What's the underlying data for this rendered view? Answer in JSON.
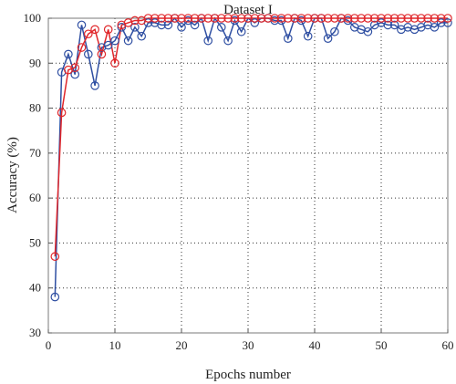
{
  "chart_data": {
    "type": "line",
    "title": "Dataset I",
    "xlabel": "Epochs number",
    "ylabel": "Accuracy (%)",
    "xlim": [
      0,
      60
    ],
    "ylim": [
      30,
      100
    ],
    "xticks": [
      0,
      10,
      20,
      30,
      40,
      50,
      60
    ],
    "yticks": [
      30,
      40,
      50,
      60,
      70,
      80,
      90,
      100
    ],
    "grid": true,
    "marker": "circle",
    "x": [
      1,
      2,
      3,
      4,
      5,
      6,
      7,
      8,
      9,
      10,
      11,
      12,
      13,
      14,
      15,
      16,
      17,
      18,
      19,
      20,
      21,
      22,
      23,
      24,
      25,
      26,
      27,
      28,
      29,
      30,
      31,
      32,
      33,
      34,
      35,
      36,
      37,
      38,
      39,
      40,
      41,
      42,
      43,
      44,
      45,
      46,
      47,
      48,
      49,
      50,
      51,
      52,
      53,
      54,
      55,
      56,
      57,
      58,
      59,
      60
    ],
    "series": [
      {
        "color": "#2f4fa2",
        "values": [
          38,
          88,
          92,
          87.5,
          98.5,
          92,
          85,
          93.5,
          94,
          95,
          98,
          95,
          98,
          96,
          99,
          99,
          98.5,
          98.5,
          100,
          98,
          99.5,
          98.5,
          100,
          95,
          100,
          98,
          95,
          99.5,
          97,
          100,
          99,
          100,
          100,
          99.5,
          99.5,
          95.5,
          100,
          99.5,
          96,
          100,
          100,
          95.5,
          97,
          100,
          99.5,
          98,
          97.5,
          97,
          98.5,
          99,
          98.5,
          98.5,
          97.5,
          98,
          97.5,
          98,
          98.5,
          98,
          99,
          99
        ]
      },
      {
        "color": "#e0262a",
        "values": [
          47,
          79,
          88.5,
          89,
          93.5,
          96.5,
          97.5,
          92,
          97.5,
          90,
          98.5,
          99,
          99.5,
          99.5,
          100,
          100,
          100,
          100,
          100,
          100,
          100,
          100,
          100,
          100,
          100,
          100,
          100,
          100,
          100,
          100,
          100,
          100,
          100,
          100,
          100,
          100,
          100,
          100,
          100,
          100,
          100,
          100,
          100,
          100,
          100,
          100,
          100,
          100,
          100,
          100,
          100,
          100,
          100,
          100,
          100,
          100,
          100,
          100,
          100,
          100
        ]
      }
    ]
  }
}
